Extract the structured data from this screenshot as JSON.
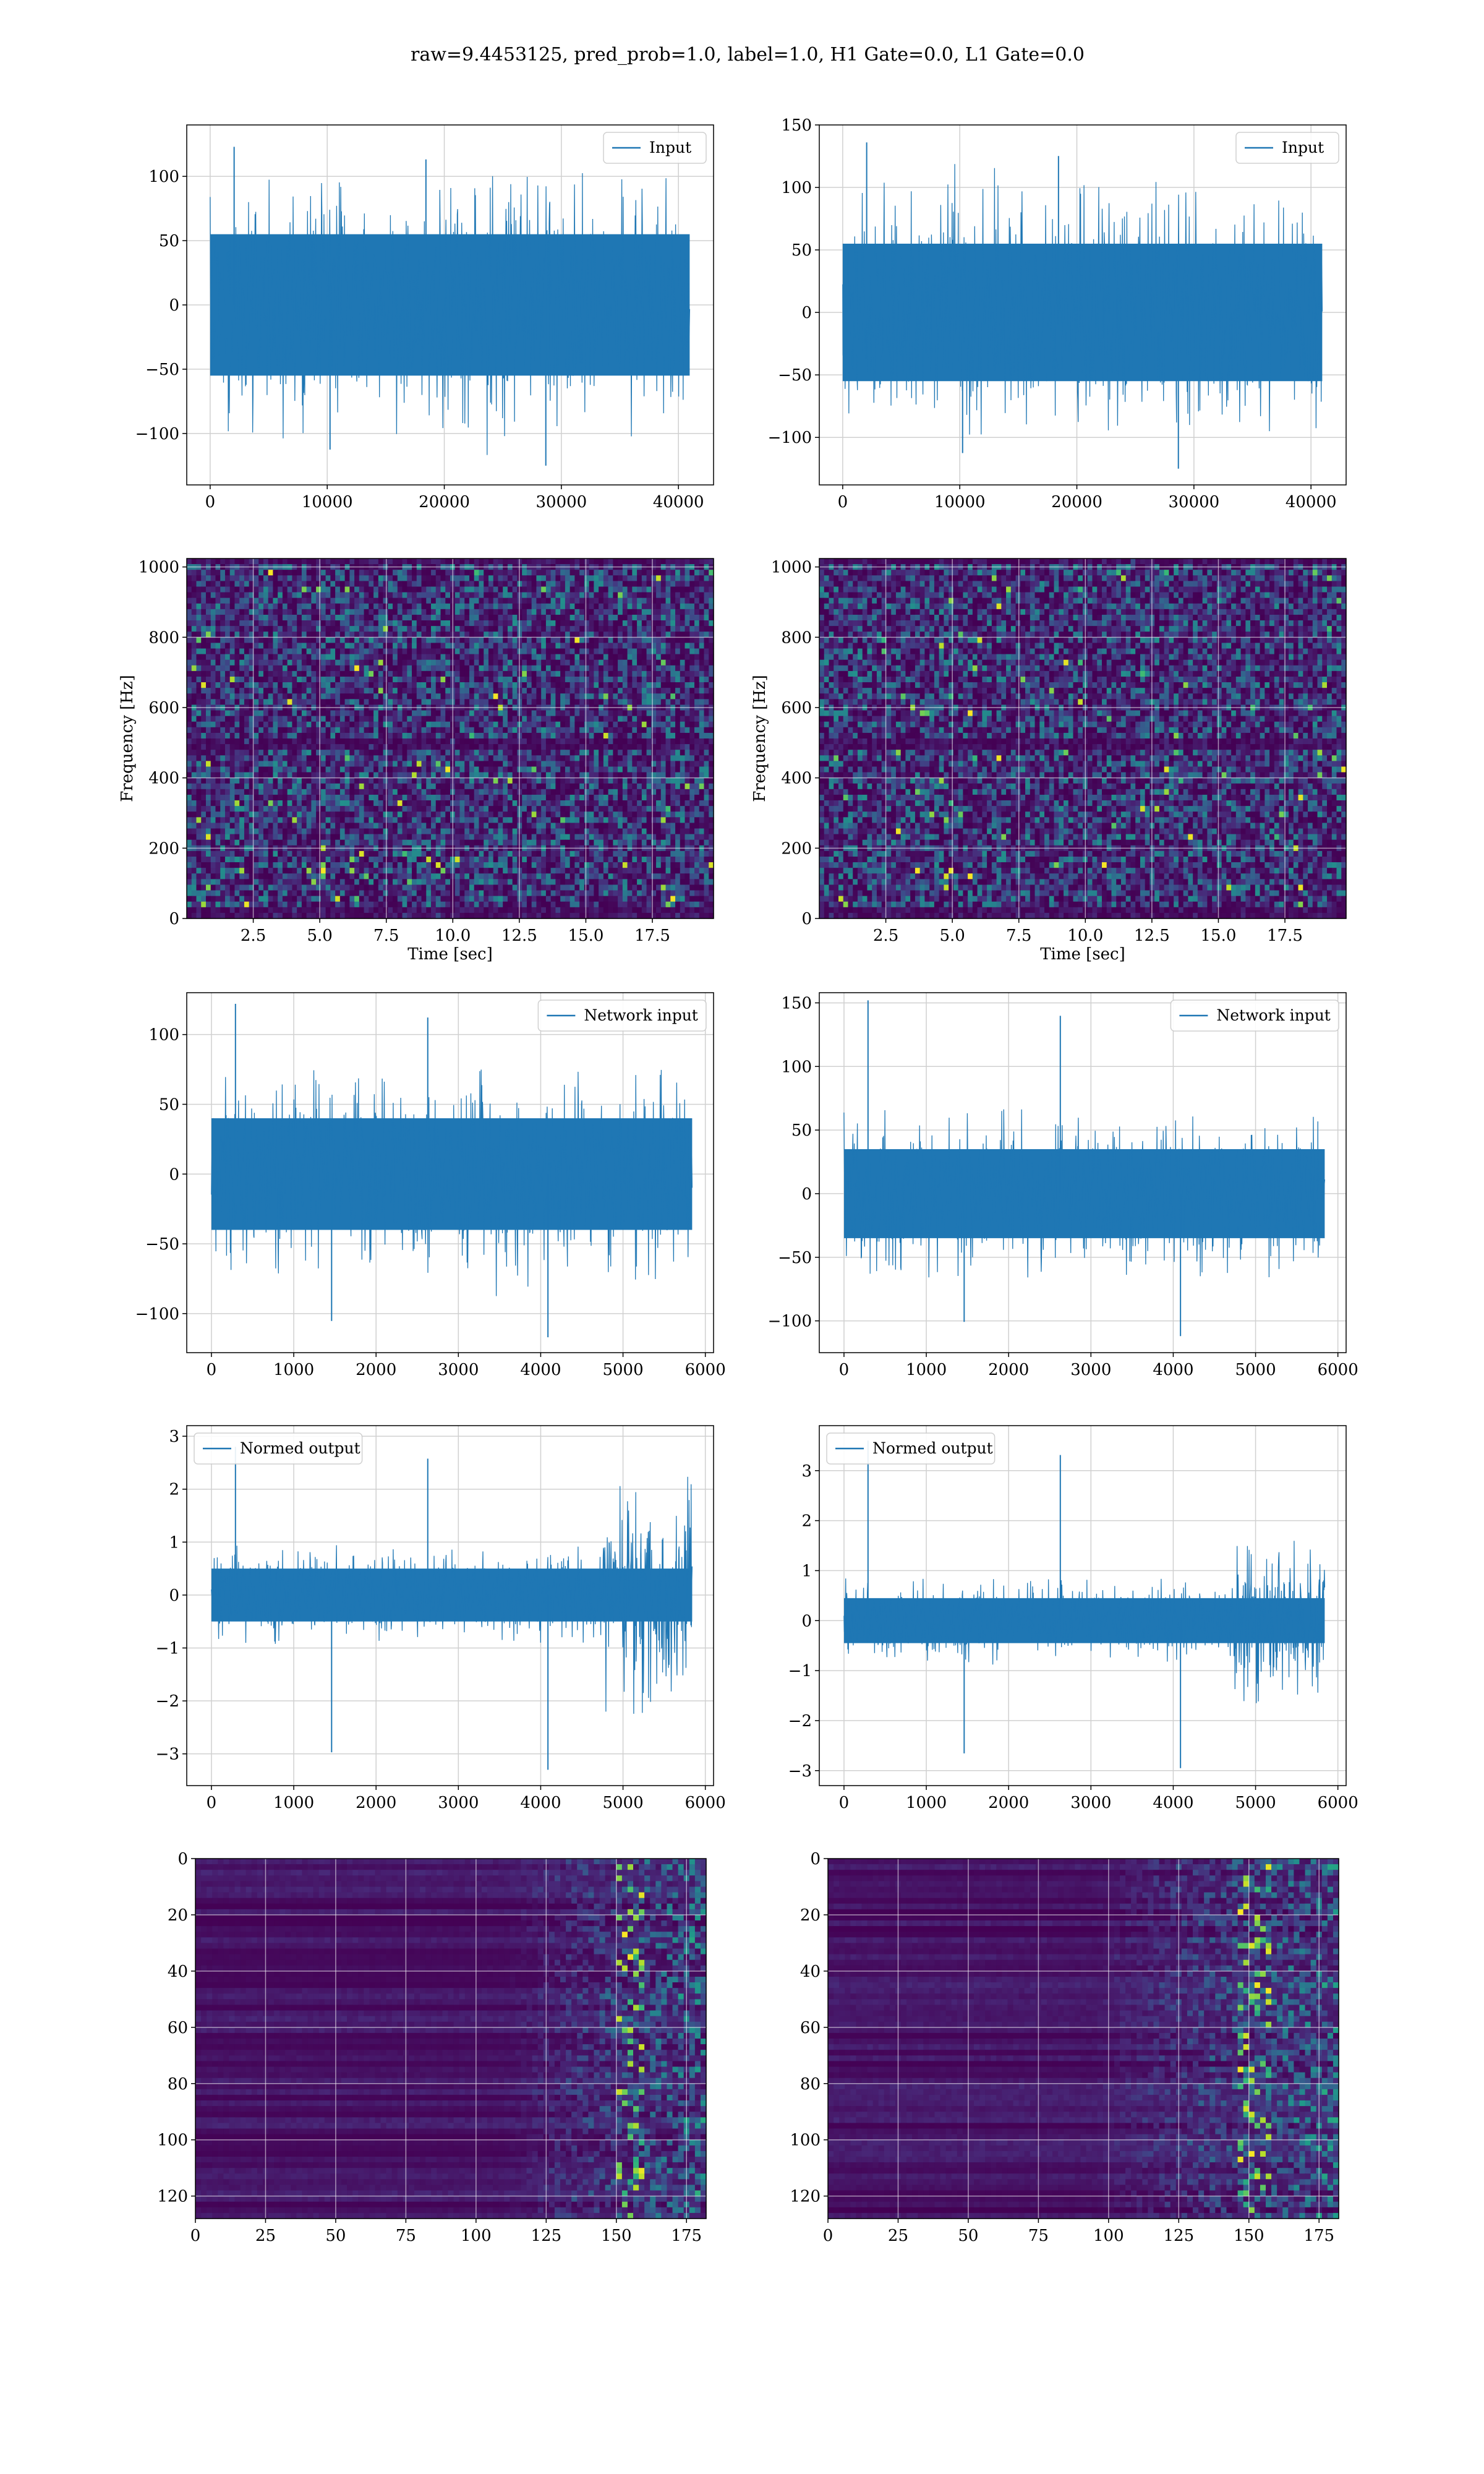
{
  "figure": {
    "title": "raw=9.4453125, pred_prob=1.0, label=1.0, H1 Gate=0.0, L1 Gate=0.0"
  },
  "colors": {
    "line": "#1f77b4",
    "grid": "#d0d0d0",
    "viridis_low": "#440154",
    "viridis_high": "#fde725"
  },
  "chart_data": [
    {
      "id": "h1-input",
      "type": "line",
      "title": "",
      "xlabel": "",
      "ylabel": "",
      "xlim": [
        -2000,
        43000
      ],
      "ylim": [
        -140,
        140
      ],
      "xticks": [
        0,
        10000,
        20000,
        30000,
        40000
      ],
      "yticks": [
        -100,
        -50,
        0,
        50,
        100
      ],
      "legend": "top-right",
      "grid": true,
      "series": [
        {
          "name": "Input",
          "x_range": [
            0,
            40960
          ],
          "n_points": 40960,
          "envelope_min": -125,
          "envelope_max": 123,
          "typical_band": [
            -55,
            55
          ]
        }
      ]
    },
    {
      "id": "l1-input",
      "type": "line",
      "title": "",
      "xlabel": "",
      "ylabel": "",
      "xlim": [
        -2000,
        43000
      ],
      "ylim": [
        -138,
        150
      ],
      "xticks": [
        0,
        10000,
        20000,
        30000,
        40000
      ],
      "yticks": [
        -100,
        -50,
        0,
        50,
        100,
        150
      ],
      "legend": "top-right",
      "grid": true,
      "series": [
        {
          "name": "Input",
          "x_range": [
            0,
            40960
          ],
          "n_points": 40960,
          "envelope_min": -125,
          "envelope_max": 136,
          "typical_band": [
            -55,
            55
          ]
        }
      ]
    },
    {
      "id": "h1-spectrogram",
      "type": "heatmap",
      "title": "",
      "xlabel": "Time [sec]",
      "ylabel": "Frequency [Hz]",
      "xlim": [
        0,
        19.8
      ],
      "ylim": [
        0,
        1024
      ],
      "xticks": [
        2.5,
        5.0,
        7.5,
        10.0,
        12.5,
        15.0,
        17.5
      ],
      "xtick_labels": [
        "2.5",
        "5.0",
        "7.5",
        "10.0",
        "12.5",
        "15.0",
        "17.5"
      ],
      "yticks": [
        0,
        200,
        400,
        600,
        800,
        1000
      ],
      "colormap": "viridis",
      "grid": true,
      "dark_bands_hz": [
        [
          0,
          20
        ],
        [
          490,
          505
        ],
        [
          1010,
          1024
        ]
      ]
    },
    {
      "id": "l1-spectrogram",
      "type": "heatmap",
      "title": "",
      "xlabel": "Time [sec]",
      "ylabel": "Frequency [Hz]",
      "xlim": [
        0,
        19.8
      ],
      "ylim": [
        0,
        1024
      ],
      "xticks": [
        2.5,
        5.0,
        7.5,
        10.0,
        12.5,
        15.0,
        17.5
      ],
      "xtick_labels": [
        "2.5",
        "5.0",
        "7.5",
        "10.0",
        "12.5",
        "15.0",
        "17.5"
      ],
      "yticks": [
        0,
        200,
        400,
        600,
        800,
        1000
      ],
      "colormap": "viridis",
      "grid": true,
      "dark_bands_hz": [
        [
          0,
          20
        ],
        [
          490,
          505
        ],
        [
          1010,
          1024
        ]
      ]
    },
    {
      "id": "h1-network-input",
      "type": "line",
      "title": "",
      "xlabel": "",
      "ylabel": "",
      "xlim": [
        -300,
        6100
      ],
      "ylim": [
        -128,
        130
      ],
      "xticks": [
        0,
        1000,
        2000,
        3000,
        4000,
        5000,
        6000
      ],
      "yticks": [
        -100,
        -50,
        0,
        50,
        100
      ],
      "legend": "top-right",
      "grid": true,
      "series": [
        {
          "name": "Network input",
          "x_range": [
            0,
            5840
          ],
          "n_points": 5840,
          "envelope_min": -117,
          "envelope_max": 122,
          "typical_band": [
            -40,
            40
          ]
        }
      ]
    },
    {
      "id": "l1-network-input",
      "type": "line",
      "title": "",
      "xlabel": "",
      "ylabel": "",
      "xlim": [
        -300,
        6100
      ],
      "ylim": [
        -125,
        158
      ],
      "xticks": [
        0,
        1000,
        2000,
        3000,
        4000,
        5000,
        6000
      ],
      "yticks": [
        -100,
        -50,
        0,
        50,
        100,
        150
      ],
      "legend": "top-right",
      "grid": true,
      "series": [
        {
          "name": "Network input",
          "x_range": [
            0,
            5840
          ],
          "n_points": 5840,
          "envelope_min": -112,
          "envelope_max": 152,
          "typical_band": [
            -35,
            35
          ]
        }
      ]
    },
    {
      "id": "h1-normed-output",
      "type": "line",
      "title": "",
      "xlabel": "",
      "ylabel": "",
      "xlim": [
        -300,
        6100
      ],
      "ylim": [
        -3.6,
        3.2
      ],
      "xticks": [
        0,
        1000,
        2000,
        3000,
        4000,
        5000,
        6000
      ],
      "yticks": [
        -3,
        -2,
        -1,
        0,
        1,
        2,
        3
      ],
      "legend": "top-left",
      "grid": true,
      "series": [
        {
          "name": "Normed output",
          "x_range": [
            0,
            5840
          ],
          "n_points": 5840,
          "envelope_min": -3.3,
          "envelope_max": 2.8,
          "typical_band": [
            -0.5,
            0.5
          ],
          "burst_range": [
            4720,
            5840
          ],
          "burst_band": [
            -1.2,
            1.2
          ]
        }
      ]
    },
    {
      "id": "l1-normed-output",
      "type": "line",
      "title": "",
      "xlabel": "",
      "ylabel": "",
      "xlim": [
        -300,
        6100
      ],
      "ylim": [
        -3.3,
        3.9
      ],
      "xticks": [
        0,
        1000,
        2000,
        3000,
        4000,
        5000,
        6000
      ],
      "yticks": [
        -3,
        -2,
        -1,
        0,
        1,
        2,
        3
      ],
      "legend": "top-left",
      "grid": true,
      "series": [
        {
          "name": "Normed output",
          "x_range": [
            0,
            5840
          ],
          "n_points": 5840,
          "envelope_min": -2.95,
          "envelope_max": 3.6,
          "typical_band": [
            -0.45,
            0.45
          ],
          "burst_range": [
            4750,
            5840
          ],
          "burst_band": [
            -1.0,
            1.0
          ]
        }
      ]
    },
    {
      "id": "h1-feature-map",
      "type": "heatmap",
      "title": "",
      "xlabel": "",
      "ylabel": "",
      "xlim": [
        0,
        182
      ],
      "ylim": [
        128,
        0
      ],
      "xticks": [
        0,
        25,
        50,
        75,
        100,
        125,
        150,
        175
      ],
      "yticks": [
        0,
        20,
        40,
        60,
        80,
        100,
        120
      ],
      "colormap": "viridis",
      "grid": true,
      "active_column_range": [
        110,
        182
      ],
      "peak_column": 155
    },
    {
      "id": "l1-feature-map",
      "type": "heatmap",
      "title": "",
      "xlabel": "",
      "ylabel": "",
      "xlim": [
        0,
        182
      ],
      "ylim": [
        128,
        0
      ],
      "xticks": [
        0,
        25,
        50,
        75,
        100,
        125,
        150,
        175
      ],
      "yticks": [
        0,
        20,
        40,
        60,
        80,
        100,
        120
      ],
      "colormap": "viridis",
      "grid": true,
      "active_column_range": [
        95,
        182
      ],
      "peak_column": 152
    }
  ]
}
